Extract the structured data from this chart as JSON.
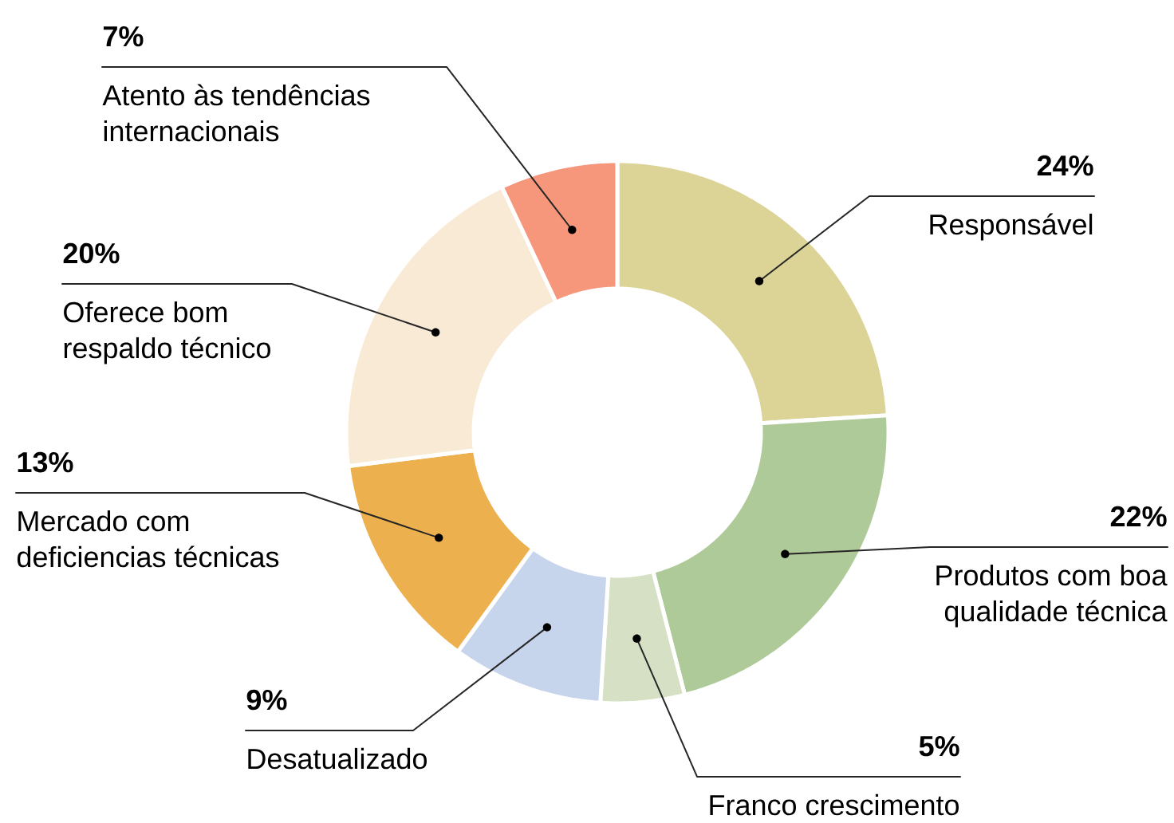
{
  "chart_data": {
    "type": "donut",
    "categories": [
      "Responsável",
      "Produtos com boa qualidade técnica",
      "Franco crescimento",
      "Desatualizado",
      "Mercado com deficiencias técnicas",
      "Oferece bom respaldo técnico",
      "Atento às tendências internacionais"
    ],
    "values": [
      24,
      22,
      5,
      9,
      13,
      20,
      7
    ],
    "colors": [
      "#dcd396",
      "#afca99",
      "#d5e0c5",
      "#c6d4ec",
      "#ecb04e",
      "#f9ead6",
      "#f6967a"
    ],
    "value_labels": [
      "24%",
      "22%",
      "5%",
      "9%",
      "13%",
      "20%",
      "7%"
    ]
  }
}
